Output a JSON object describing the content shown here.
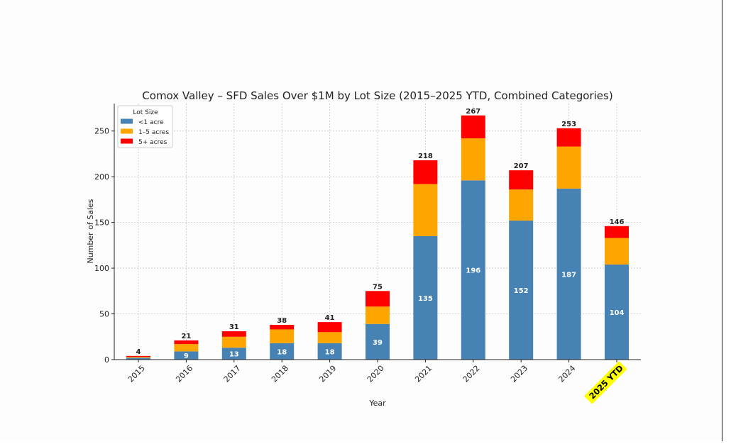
{
  "chart_data": {
    "type": "bar",
    "stacked": true,
    "title": "Comox Valley – SFD Sales Over $1M by Lot Size (2015–2025 YTD, Combined Categories)",
    "xlabel": "Year",
    "ylabel": "Number of Sales",
    "categories": [
      "2015",
      "2016",
      "2017",
      "2018",
      "2019",
      "2020",
      "2021",
      "2022",
      "2023",
      "2024",
      "2025 YTD"
    ],
    "highlighted_category": "2025 YTD",
    "highlight_color": "#ffff00",
    "ylim": [
      0,
      280
    ],
    "yticks": [
      0,
      50,
      100,
      150,
      200,
      250
    ],
    "grid": true,
    "legend": {
      "title": "Lot Size",
      "placement": "top-left"
    },
    "series": [
      {
        "name": "<1 acre",
        "color": "#4682b4",
        "values": [
          2,
          9,
          13,
          18,
          18,
          39,
          135,
          196,
          152,
          187,
          104
        ],
        "show_labels": true
      },
      {
        "name": "1–5 acres",
        "color": "#ffa500",
        "values": [
          1,
          8,
          12,
          15,
          12,
          19,
          57,
          46,
          34,
          46,
          29
        ],
        "show_labels": false
      },
      {
        "name": "5+ acres",
        "color": "#ff0000",
        "values": [
          1,
          4,
          6,
          5,
          11,
          17,
          26,
          25,
          21,
          20,
          13
        ],
        "show_labels": false
      }
    ],
    "totals": [
      4,
      21,
      31,
      38,
      41,
      75,
      218,
      267,
      207,
      253,
      146
    ]
  }
}
